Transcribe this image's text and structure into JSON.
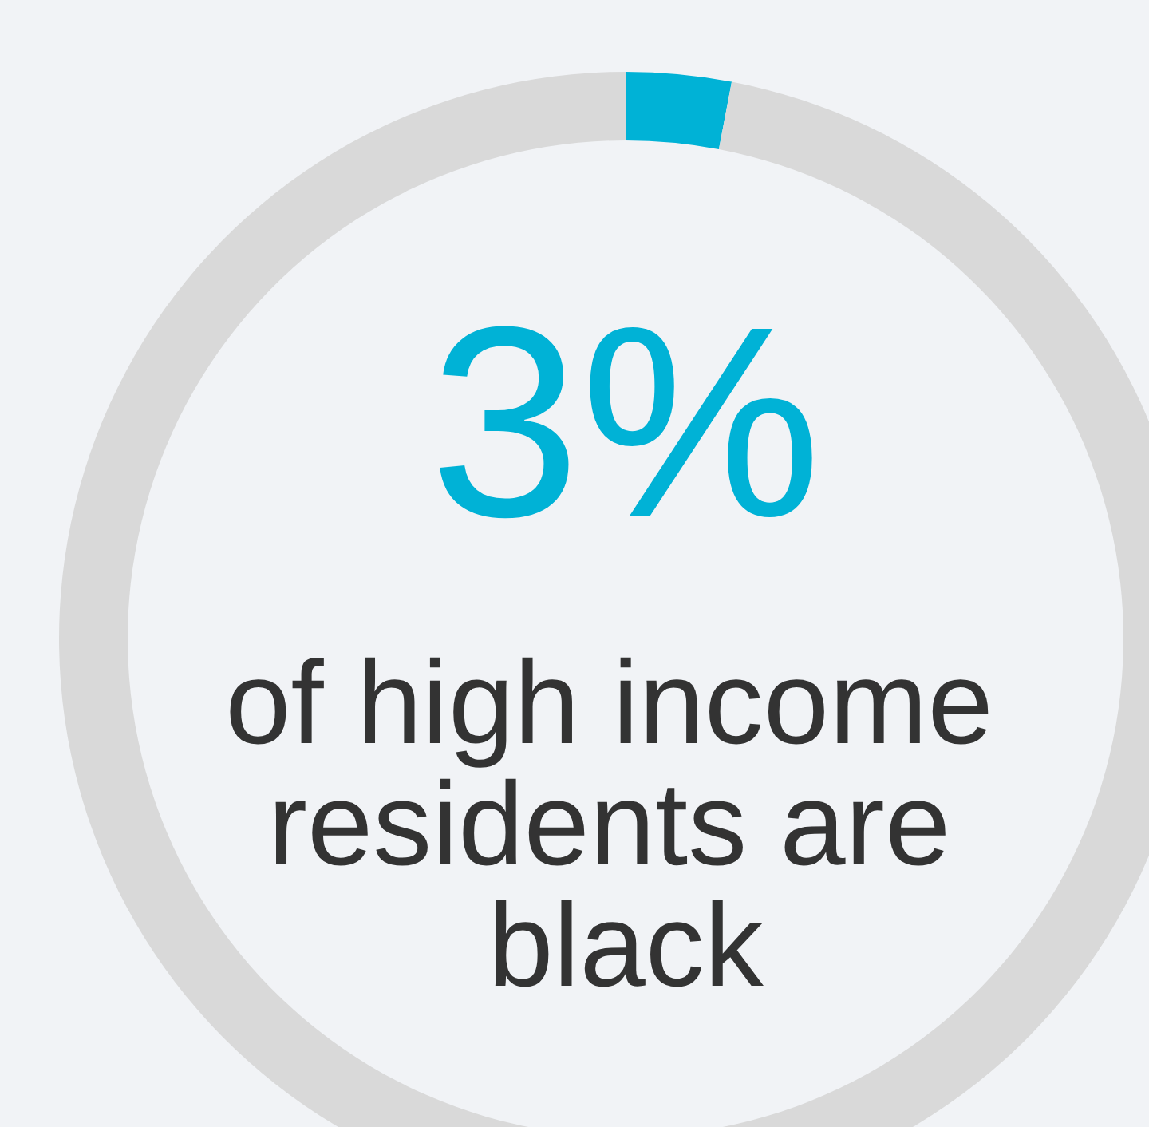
{
  "chart_data": {
    "type": "donut",
    "categories": [
      null,
      null
    ],
    "values": [
      3,
      97
    ],
    "colors": [
      "#00b2d6",
      "#d9d9d9"
    ],
    "value_labels": [
      "3%",
      null
    ],
    "annotations": [
      "of high income residents are black"
    ]
  }
}
